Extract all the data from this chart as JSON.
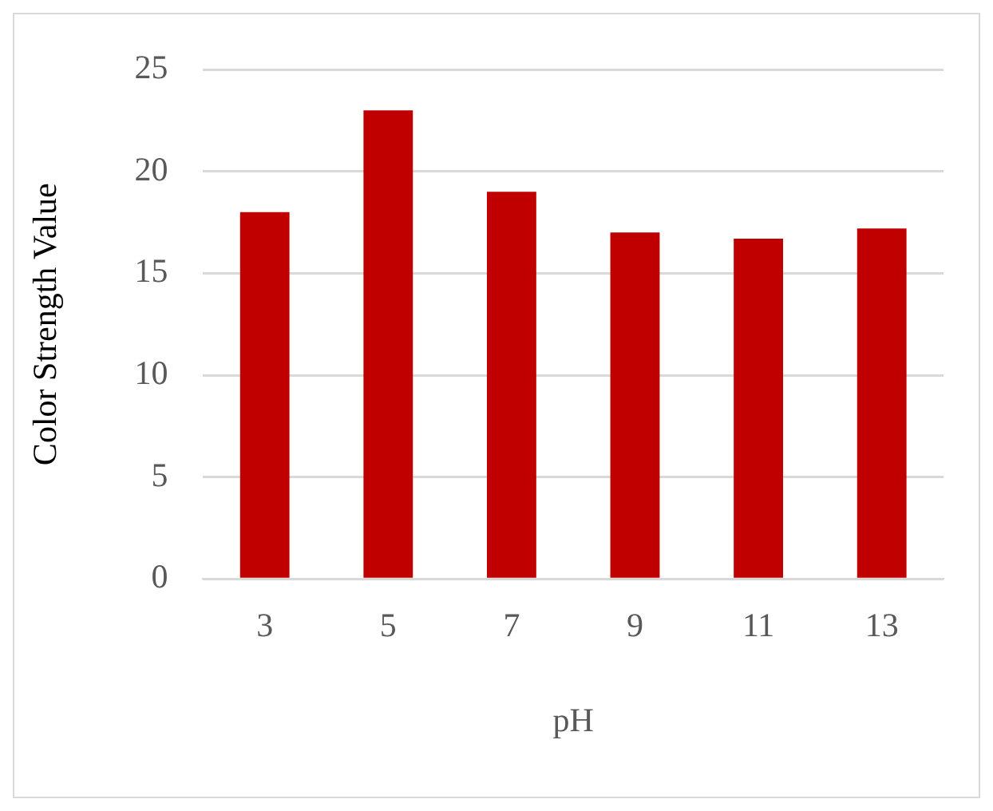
{
  "chart_data": {
    "type": "bar",
    "xlabel": "pH",
    "ylabel": "Color Strength Value",
    "categories": [
      "3",
      "5",
      "7",
      "9",
      "11",
      "13"
    ],
    "values": [
      18,
      23,
      19,
      17,
      16.7,
      17.2
    ],
    "color": "#c00000",
    "ylim": [
      0,
      25
    ],
    "yticks": [
      0,
      5,
      10,
      15,
      20,
      25
    ],
    "grid": "y",
    "legend": false
  }
}
